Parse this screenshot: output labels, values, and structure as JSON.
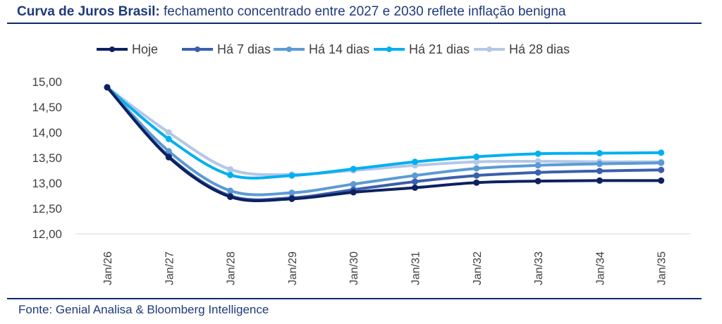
{
  "title": {
    "bold": "Curva de Juros Brasil:",
    "rest": " fechamento concentrado entre 2027 e 2030 reflete inflação benigna"
  },
  "source": "Fonte: Genial Analisa & Bloomberg Intelligence",
  "chart_data": {
    "type": "line",
    "categories": [
      "Jan/26",
      "Jan/27",
      "Jan/28",
      "Jan/29",
      "Jan/30",
      "Jan/31",
      "Jan/32",
      "Jan/33",
      "Jan/34",
      "Jan/35"
    ],
    "yticks": [
      "15,00",
      "14,50",
      "14,00",
      "13,50",
      "13,00",
      "12,50",
      "12,00"
    ],
    "ylim": [
      12,
      15
    ],
    "legend_position": "top",
    "series": [
      {
        "name": "Hoje",
        "color": "#0d2160",
        "values": [
          14.89,
          13.51,
          12.73,
          12.69,
          12.82,
          12.91,
          13.01,
          13.04,
          13.05,
          13.05
        ]
      },
      {
        "name": "Há 7 dias",
        "color": "#3b5fad",
        "values": [
          14.89,
          13.53,
          12.75,
          12.71,
          12.87,
          13.03,
          13.15,
          13.21,
          13.24,
          13.26
        ]
      },
      {
        "name": "Há 14 dias",
        "color": "#5b9bd5",
        "values": [
          14.89,
          13.63,
          12.85,
          12.81,
          12.98,
          13.15,
          13.29,
          13.35,
          13.38,
          13.4
        ]
      },
      {
        "name": "Há 21 dias",
        "color": "#00b0f0",
        "values": [
          14.89,
          13.87,
          13.16,
          13.15,
          13.28,
          13.42,
          13.52,
          13.58,
          13.59,
          13.6
        ]
      },
      {
        "name": "Há 28 dias",
        "color": "#b4c7e7",
        "values": [
          14.89,
          14.0,
          13.27,
          13.17,
          13.25,
          13.35,
          13.42,
          13.43,
          13.42,
          13.42
        ]
      }
    ]
  }
}
